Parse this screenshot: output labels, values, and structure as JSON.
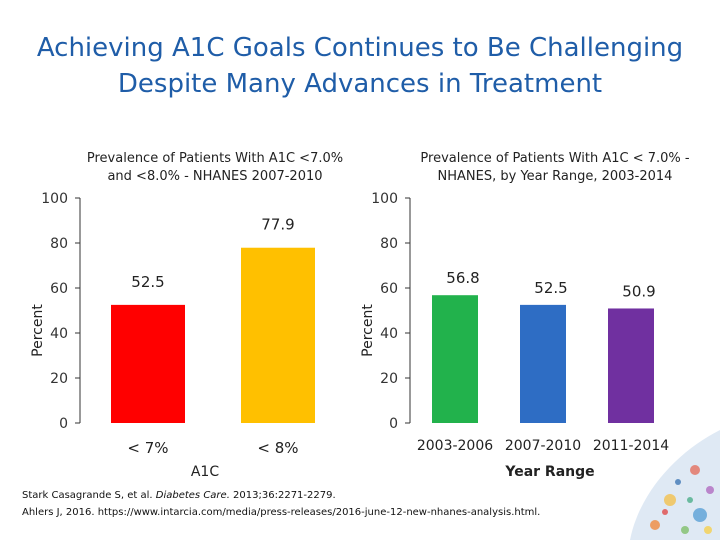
{
  "slide": {
    "title_line1": "Achieving A1C Goals Continues to Be Challenging",
    "title_line2": "Despite Many Advances in Treatment"
  },
  "citations": {
    "line1_prefix": "Stark Casagrande S, et al. ",
    "line1_journal": "Diabetes Care.",
    "line1_suffix": " 2013;36:2271-2279.",
    "line2": "Ahlers J, 2016. https://www.intarcia.com/media/press-releases/2016-june-12-new-nhanes-analysis.html."
  },
  "chart_data": [
    {
      "type": "bar",
      "title_line1": "Prevalence of Patients With A1C <7.0%",
      "title_line2": "and <8.0% - NHANES 2007-2010",
      "categories": [
        "< 7%",
        "< 8%"
      ],
      "values": [
        52.5,
        77.9
      ],
      "data_labels": [
        "52.5",
        "77.9"
      ],
      "colors": [
        "#ff0000",
        "#ffc000"
      ],
      "xlabel": "A1C",
      "ylabel": "Percent",
      "ylim": [
        0,
        100
      ],
      "yticks": [
        0,
        20,
        40,
        60,
        80,
        100
      ],
      "grid": false
    },
    {
      "type": "bar",
      "title_line1": "Prevalence of Patients With A1C < 7.0% -",
      "title_line2": "NHANES, by Year Range, 2003-2014",
      "categories": [
        "2003-2006",
        "2007-2010",
        "2011-2014"
      ],
      "values": [
        56.8,
        52.5,
        50.9
      ],
      "data_labels": [
        "56.8",
        "52.5",
        "50.9"
      ],
      "colors": [
        "#22b24c",
        "#2e6dc4",
        "#7030a0"
      ],
      "xlabel": "Year Range",
      "ylabel": "Percent",
      "ylim": [
        0,
        100
      ],
      "yticks": [
        0,
        20,
        40,
        60,
        80,
        100
      ],
      "grid": false
    }
  ]
}
